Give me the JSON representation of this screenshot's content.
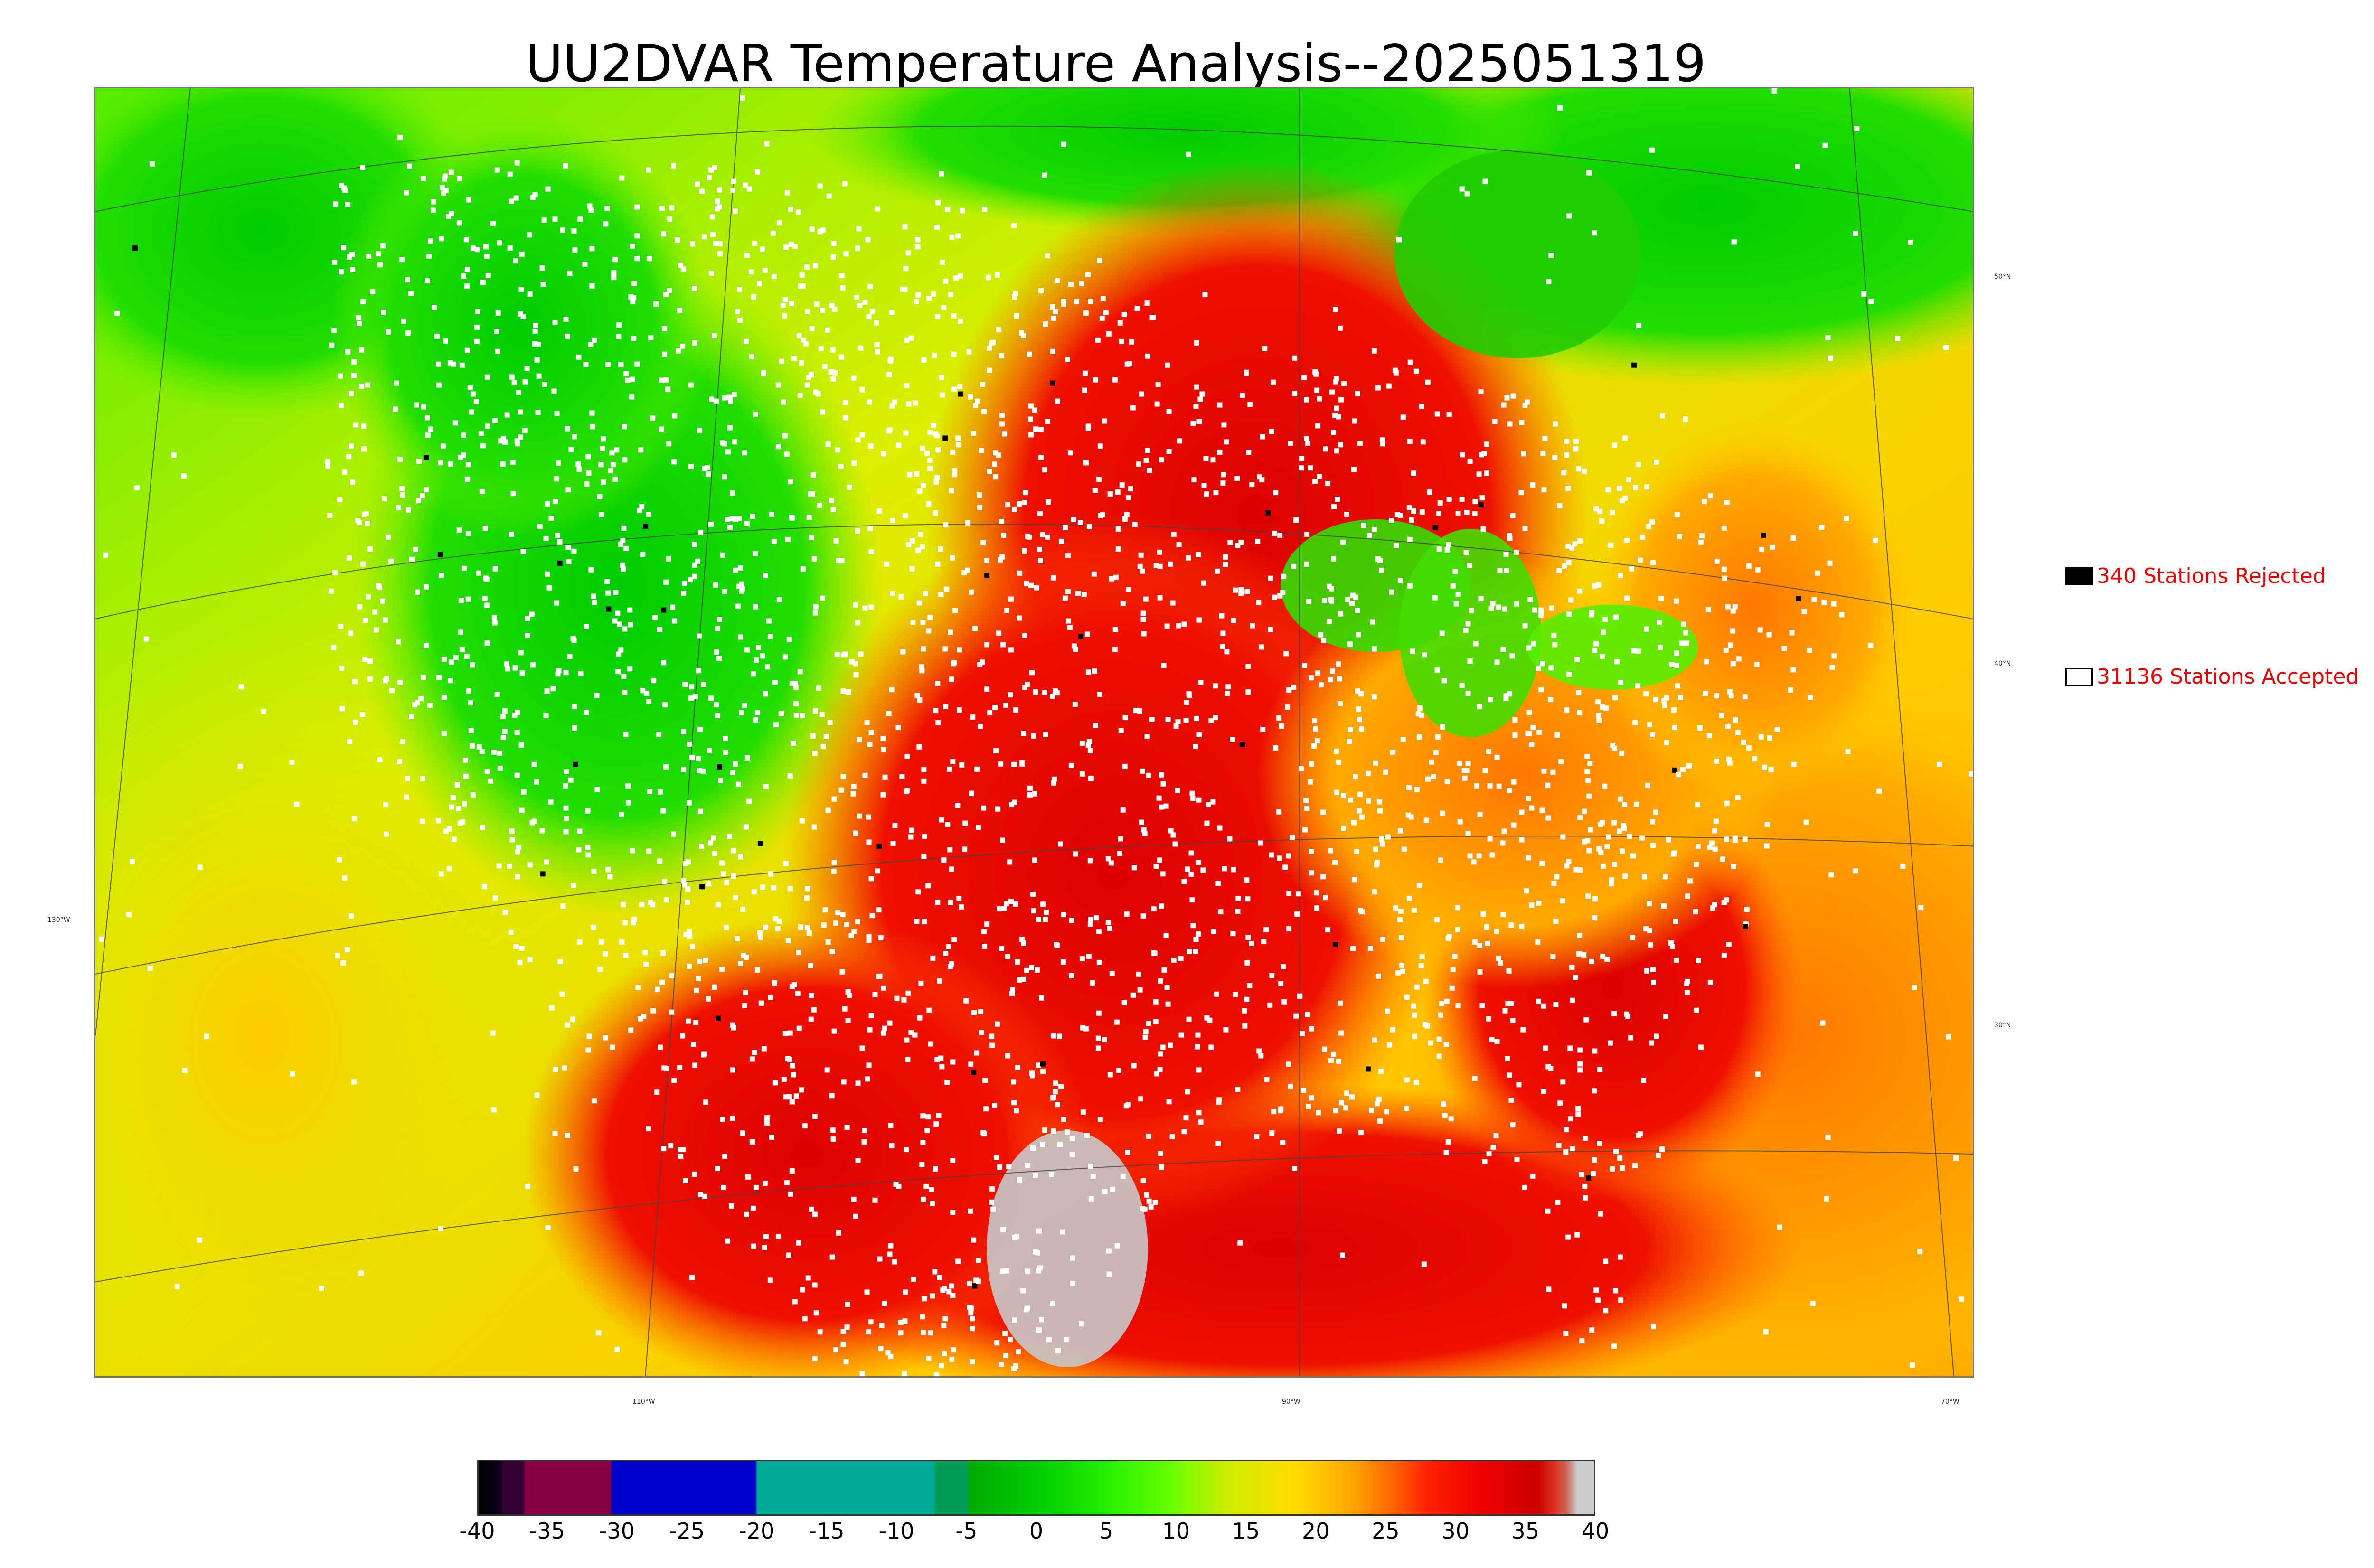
{
  "title": "UU2DVAR Temperature Analysis--2025051319",
  "legend": {
    "rejected": {
      "label": "340 Stations Rejected",
      "swatch_color": "#000000"
    },
    "accepted": {
      "label": "31136 Stations Accepted",
      "swatch_color": "#ffffff"
    }
  },
  "lat_labels": [
    "50°N",
    "40°N",
    "30°N"
  ],
  "lon_labels": [
    "130°W",
    "110°W",
    "90°W",
    "70°W"
  ],
  "colorbar": {
    "ticks": [
      "-40",
      "-35",
      "-30",
      "-25",
      "-20",
      "-15",
      "-10",
      "-5",
      "0",
      "5",
      "10",
      "15",
      "20",
      "25",
      "30",
      "35",
      "40"
    ],
    "range": [
      -40,
      40
    ],
    "units": ""
  },
  "colors": {
    "cold": "#00cc00",
    "mild": "#ccee00",
    "warm": "#ffaa00",
    "hot": "#ee1100",
    "station_accepted": "#ffffff",
    "station_rejected": "#000000"
  }
}
